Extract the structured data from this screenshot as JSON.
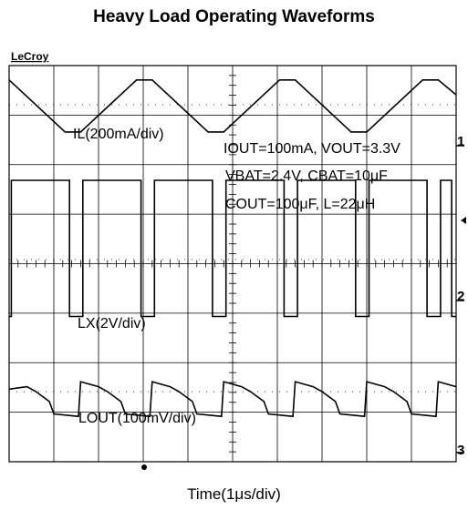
{
  "chart_data": {
    "type": "line",
    "title": "Heavy Load Operating Waveforms",
    "xlabel": "Time(1μs/div)",
    "ylabel": "",
    "brand": "LeCroy",
    "grid": true,
    "grid_divisions": {
      "x": 10,
      "y": 8
    },
    "xlim": [
      0,
      10
    ],
    "x_unit": "div",
    "period_div": 1.6,
    "conditions": [
      {
        "text": "IOUT=100mA, VOUT=3.3V"
      },
      {
        "text": "VBAT=2.4V, CBAT=10μF"
      },
      {
        "text": "COUT=100μF, L=22μH"
      }
    ],
    "series": [
      {
        "name": "IL(200mA/div)",
        "label": "IL(200mA/div)",
        "channel_marker": "1",
        "shape": "triangle",
        "x": [
          0,
          1.25,
          1.6,
          2.85,
          3.2,
          4.45,
          4.8,
          6.05,
          6.4,
          7.65,
          8.0,
          9.25,
          9.6,
          10
        ],
        "values": [
          0.5,
          -0.55,
          -0.55,
          0.5,
          0.5,
          -0.55,
          -0.55,
          0.5,
          0.5,
          -0.55,
          -0.55,
          0.5,
          0.5,
          0.2
        ]
      },
      {
        "name": "LX(2V/div)",
        "label": "LX(2V/div)",
        "channel_marker": "2",
        "shape": "square",
        "x": [
          0,
          0.05,
          0.05,
          0.6,
          0.6,
          0.05,
          0.05,
          1.35,
          1.35,
          1.65,
          1.65,
          2.95,
          2.95,
          3.25,
          3.25,
          4.55,
          4.55,
          4.85,
          4.85,
          6.15,
          6.15,
          6.45,
          6.45,
          7.75,
          7.75,
          8.05,
          8.05,
          9.35,
          9.35,
          9.65,
          9.65,
          9.9,
          9.9,
          10
        ],
        "values": [
          -1.15,
          -1.15,
          1.6,
          1.6,
          1.6,
          1.6,
          1.6,
          1.6,
          -1.15,
          -1.15,
          1.6,
          1.6,
          -1.15,
          -1.15,
          1.6,
          1.6,
          -1.15,
          -1.15,
          1.6,
          1.6,
          -1.15,
          -1.15,
          1.6,
          1.6,
          -1.15,
          -1.15,
          1.6,
          1.6,
          -1.15,
          -1.15,
          1.6,
          1.6,
          -1.15,
          -1.15
        ]
      },
      {
        "name": "LOUT(100mV/div)",
        "label": "LOUT(100mV/div)",
        "channel_marker": "3",
        "shape": "step-sawtooth",
        "x": [
          0,
          0.4,
          0.6,
          0.9,
          1.0,
          1.55,
          1.6,
          2.0,
          2.2,
          2.5,
          2.6,
          3.15,
          3.2,
          3.6,
          3.8,
          4.1,
          4.2,
          4.75,
          4.8,
          5.2,
          5.4,
          5.7,
          5.8,
          6.35,
          6.4,
          6.8,
          7.0,
          7.3,
          7.4,
          7.95,
          8.0,
          8.4,
          8.6,
          8.9,
          9.0,
          9.55,
          9.6,
          10
        ],
        "values": [
          0.05,
          0.1,
          0.0,
          -0.2,
          -0.45,
          -0.5,
          0.2,
          0.1,
          0.0,
          -0.2,
          -0.45,
          -0.5,
          0.2,
          0.1,
          0.0,
          -0.2,
          -0.45,
          -0.5,
          0.2,
          0.1,
          0.0,
          -0.2,
          -0.45,
          -0.5,
          0.2,
          0.1,
          0.0,
          -0.2,
          -0.45,
          -0.5,
          0.2,
          0.1,
          0.0,
          -0.2,
          -0.45,
          -0.5,
          0.2,
          0.1
        ]
      }
    ]
  }
}
